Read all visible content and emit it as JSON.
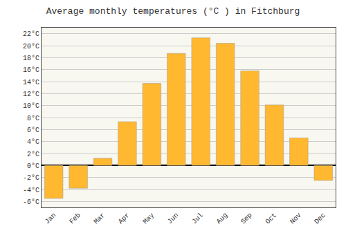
{
  "chart_data": {
    "type": "bar",
    "title": "Average monthly temperatures (°C ) in Fitchburg",
    "categories": [
      "Jan",
      "Feb",
      "Mar",
      "Apr",
      "May",
      "Jun",
      "Jul",
      "Aug",
      "Sep",
      "Oct",
      "Nov",
      "Dec"
    ],
    "values": [
      -5.5,
      -3.8,
      1.2,
      7.3,
      13.7,
      18.7,
      21.3,
      20.4,
      15.8,
      10.1,
      4.6,
      -2.5
    ],
    "color": "#FFB830",
    "ylim": [
      -7,
      23
    ],
    "yticks": [
      {
        "value": -6,
        "label": "-6°C"
      },
      {
        "value": -4,
        "label": "-4°C"
      },
      {
        "value": -2,
        "label": "-2°C"
      },
      {
        "value": 0,
        "label": "0°C"
      },
      {
        "value": 2,
        "label": "2°C"
      },
      {
        "value": 4,
        "label": "4°C"
      },
      {
        "value": 6,
        "label": "6°C"
      },
      {
        "value": 8,
        "label": "8°C"
      },
      {
        "value": 10,
        "label": "10°C"
      },
      {
        "value": 12,
        "label": "12°C"
      },
      {
        "value": 14,
        "label": "14°C"
      },
      {
        "value": 16,
        "label": "16°C"
      },
      {
        "value": 18,
        "label": "18°C"
      },
      {
        "value": 20,
        "label": "20°C"
      },
      {
        "value": 22,
        "label": "22°C"
      }
    ],
    "grid": true
  }
}
